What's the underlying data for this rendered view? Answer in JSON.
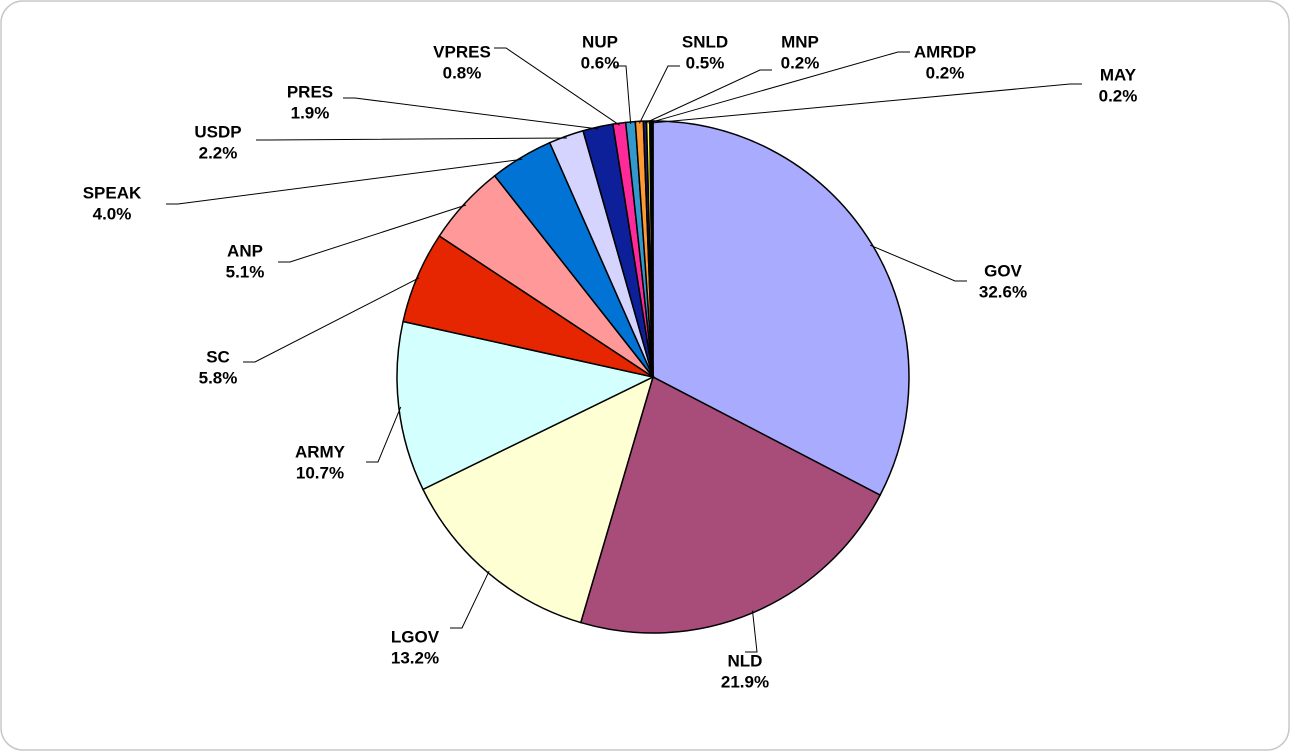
{
  "chart_data": {
    "type": "pie",
    "categories": [
      "GOV",
      "NLD",
      "LGOV",
      "ARMY",
      "SC",
      "ANP",
      "SPEAK",
      "USDP",
      "PRES",
      "VPRES",
      "NUP",
      "SNLD",
      "MNP",
      "AMRDP",
      "MAY"
    ],
    "values": [
      32.6,
      21.9,
      13.2,
      10.7,
      5.8,
      5.1,
      4.0,
      2.2,
      1.9,
      0.8,
      0.6,
      0.5,
      0.2,
      0.2,
      0.2
    ],
    "value_labels": [
      "32.6%",
      "21.9%",
      "13.2%",
      "10.7%",
      "5.8%",
      "5.1%",
      "4.0%",
      "2.2%",
      "1.9%",
      "0.8%",
      "0.6%",
      "0.5%",
      "0.2%",
      "0.2%",
      "0.2%"
    ],
    "colors": [
      "#a9abff",
      "#a84c7a",
      "#ffffd4",
      "#d4ffff",
      "#e62600",
      "#ff9999",
      "#0073d4",
      "#d4d4ff",
      "#0d1f99",
      "#ff2a9a",
      "#3399cc",
      "#ff9933",
      "#1a1a80",
      "#ffff33",
      "#000000"
    ]
  }
}
